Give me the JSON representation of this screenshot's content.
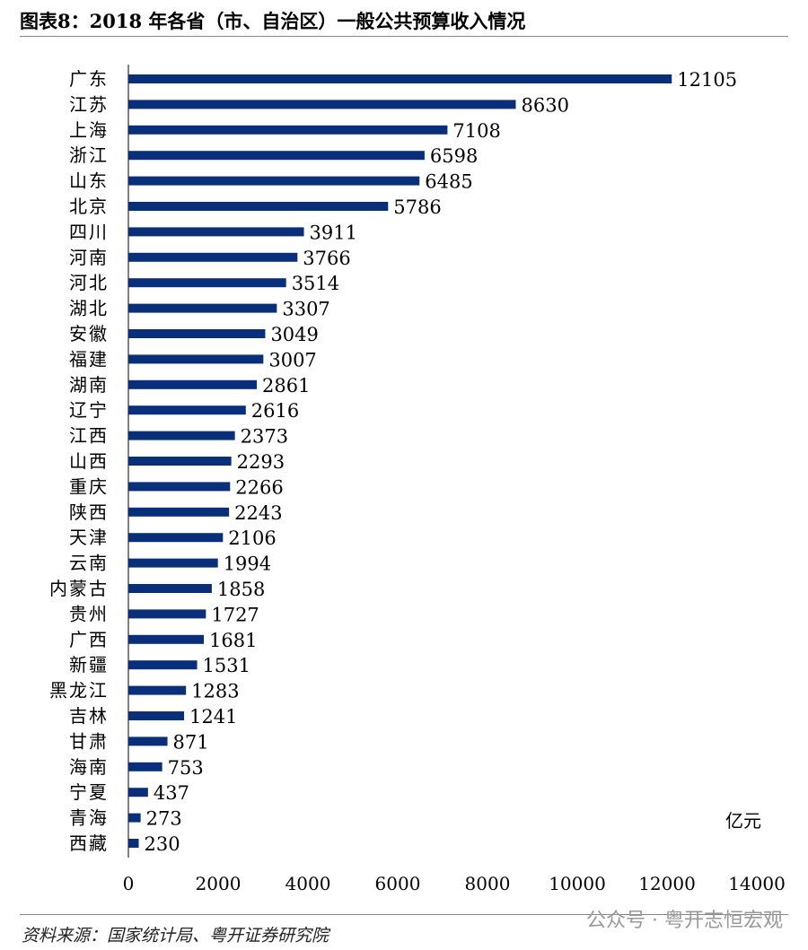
{
  "title": "图表8：2018 年各省（市、自治区）一般公共预算收入情况",
  "source": "资料来源：国家统计局、粤开证券研究院",
  "watermark": "公众号 · 粤开志恒宏观",
  "chart_data": {
    "type": "bar",
    "orientation": "horizontal",
    "title": "图表8：2018 年各省（市、自治区）一般公共预算收入情况",
    "unit_label": "亿元",
    "categories": [
      "广东",
      "江苏",
      "上海",
      "浙江",
      "山东",
      "北京",
      "四川",
      "河南",
      "河北",
      "湖北",
      "安徽",
      "福建",
      "湖南",
      "辽宁",
      "江西",
      "山西",
      "重庆",
      "陕西",
      "天津",
      "云南",
      "内蒙古",
      "贵州",
      "广西",
      "新疆",
      "黑龙江",
      "吉林",
      "甘肃",
      "海南",
      "宁夏",
      "青海",
      "西藏"
    ],
    "values": [
      12105,
      8630,
      7108,
      6598,
      6485,
      5786,
      3911,
      3766,
      3514,
      3307,
      3049,
      3007,
      2861,
      2616,
      2373,
      2293,
      2266,
      2243,
      2106,
      1994,
      1858,
      1727,
      1681,
      1531,
      1283,
      1241,
      871,
      753,
      437,
      273,
      230
    ],
    "xlim": [
      0,
      14000
    ],
    "xticks": [
      0,
      2000,
      4000,
      6000,
      8000,
      10000,
      12000,
      14000
    ],
    "grid": false,
    "bar_color": "#0a2f7a",
    "data_labels": true
  }
}
